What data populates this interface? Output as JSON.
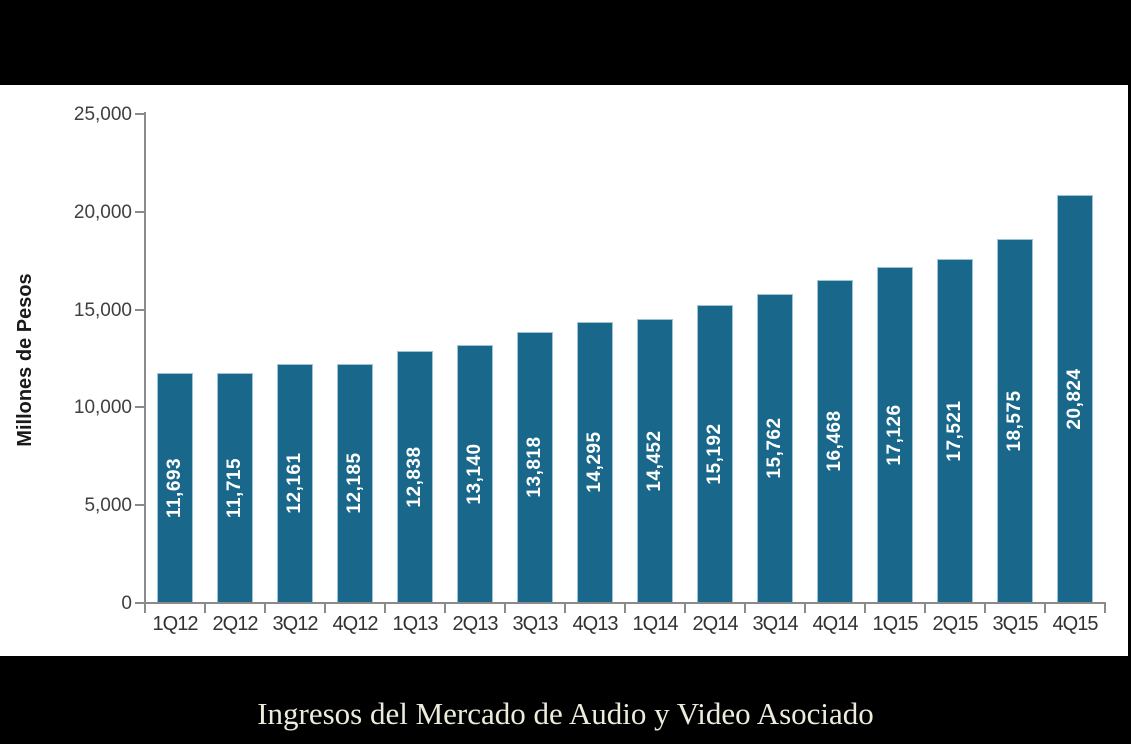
{
  "frame": {
    "background": "#000000"
  },
  "caption": {
    "text": "Ingresos del Mercado de Audio y Video Asociado",
    "color": "#edebdc"
  },
  "chart_data": {
    "type": "bar",
    "title": "Ingresos del Mercado de Audio y Video Asociado",
    "xlabel": "",
    "ylabel": "Millones de Pesos",
    "categories": [
      "1Q12",
      "2Q12",
      "3Q12",
      "4Q12",
      "1Q13",
      "2Q13",
      "3Q13",
      "4Q13",
      "1Q14",
      "2Q14",
      "3Q14",
      "4Q14",
      "1Q15",
      "2Q15",
      "3Q15",
      "4Q15"
    ],
    "values": [
      11693,
      11715,
      12161,
      12185,
      12838,
      13140,
      13818,
      14295,
      14452,
      15192,
      15762,
      16468,
      17126,
      17521,
      18575,
      20824
    ],
    "value_labels": [
      "11,693",
      "11,715",
      "12,161",
      "12,185",
      "12,838",
      "13,140",
      "13,818",
      "14,295",
      "14,452",
      "15,192",
      "15,762",
      "16,468",
      "17,126",
      "17,521",
      "18,575",
      "20,824"
    ],
    "ylim": [
      0,
      25000
    ],
    "yticks": [
      0,
      5000,
      10000,
      15000,
      20000,
      25000
    ],
    "ytick_labels": [
      "0",
      "5,000",
      "10,000",
      "15,000",
      "20,000",
      "25,000"
    ],
    "grid": false,
    "legend": "none",
    "bar_color": "#19688C",
    "bar_border_color": "#9fc4d6",
    "value_label_color": "#FFFFFF",
    "axis_color": "#8a8a8a",
    "tick_label_color": "#404040"
  }
}
